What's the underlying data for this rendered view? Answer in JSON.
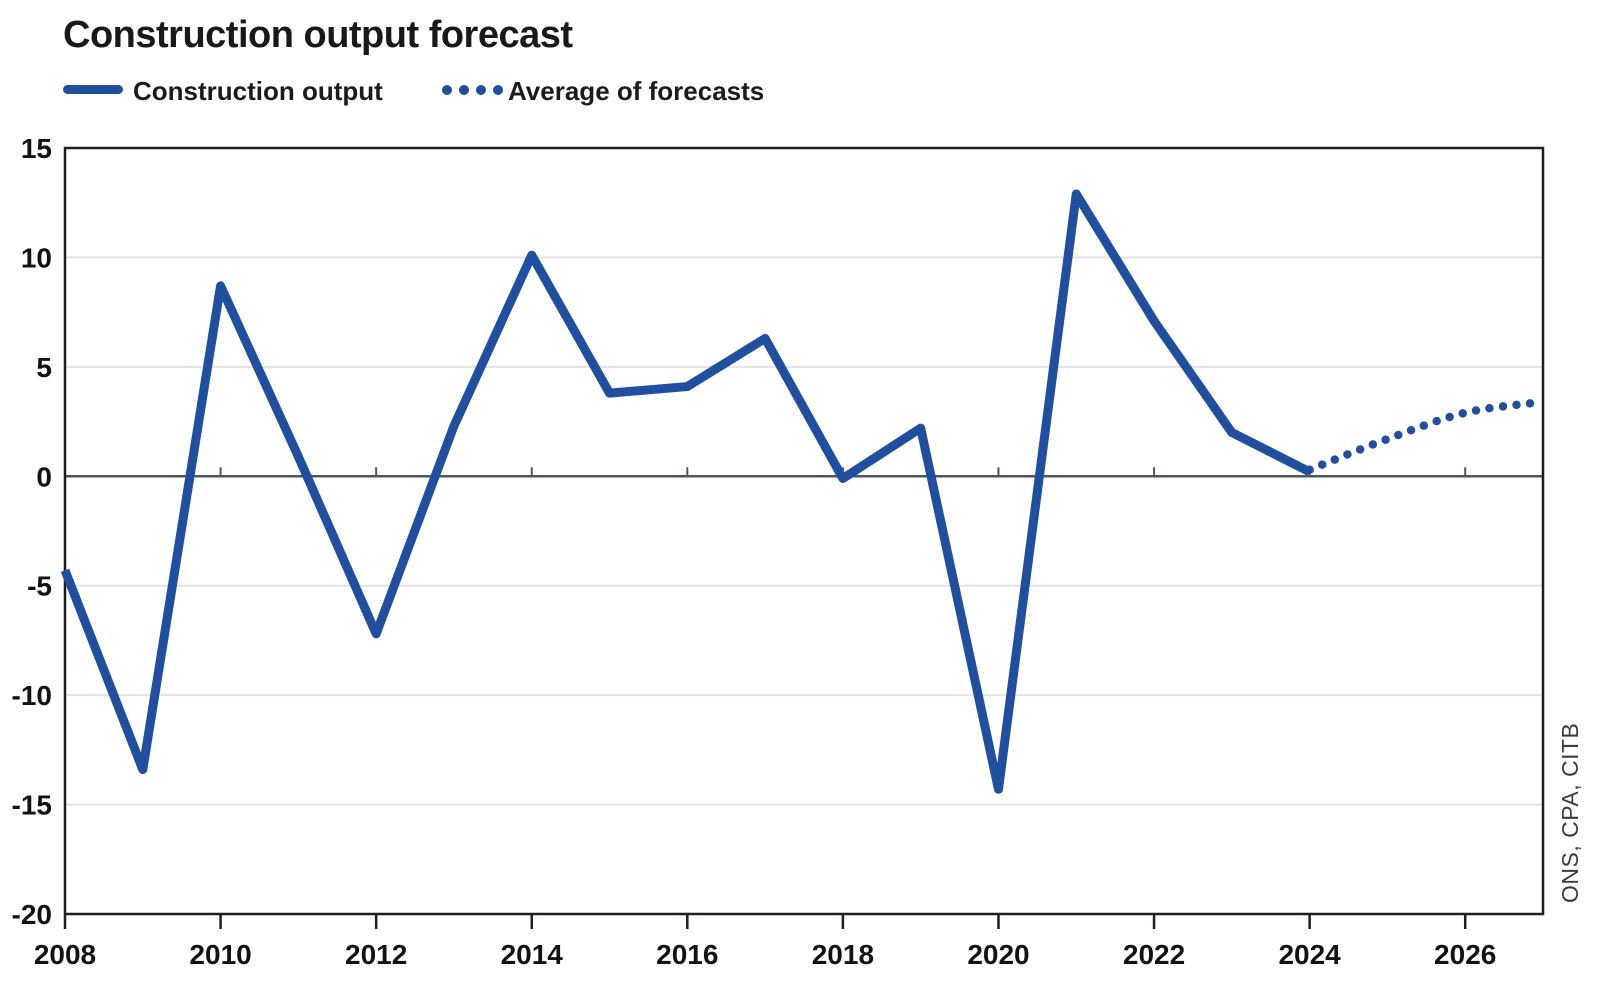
{
  "title": "Construction output forecast",
  "legend": {
    "items": [
      {
        "label": "Construction output",
        "style": "solid"
      },
      {
        "label": "Average of forecasts",
        "style": "dotted"
      }
    ]
  },
  "source": "ONS, CPA, CITB",
  "colors": {
    "line": "#1f4f9e",
    "grid": "#e3e3e4",
    "zero": "#4e555e",
    "axis": "#1c1e21",
    "text": "#121212",
    "source_text": "#3c3c3c",
    "background": "#ffffff"
  },
  "chart_data": {
    "type": "line",
    "title": "Construction output forecast",
    "xlabel": "",
    "ylabel": "",
    "xlim": [
      2008,
      2027
    ],
    "ylim": [
      -20,
      15
    ],
    "x_ticks": [
      2008,
      2010,
      2012,
      2014,
      2016,
      2018,
      2020,
      2022,
      2024,
      2026
    ],
    "y_ticks": [
      15,
      10,
      5,
      0,
      -5,
      -10,
      -15,
      -20
    ],
    "zero_line_ticks": [
      2010,
      2012,
      2014,
      2016,
      2018,
      2020,
      2022,
      2024,
      2026
    ],
    "grid": "horizontal-only",
    "legend_position": "top-left",
    "series": [
      {
        "name": "Construction output",
        "style": "solid",
        "x": [
          2008,
          2009,
          2010,
          2011,
          2012,
          2013,
          2014,
          2015,
          2016,
          2017,
          2018,
          2019,
          2020,
          2021,
          2022,
          2023,
          2024
        ],
        "values": [
          -4.3,
          -13.4,
          8.7,
          0.9,
          -7.2,
          2.3,
          10.1,
          3.8,
          4.1,
          6.3,
          -0.1,
          2.2,
          -14.3,
          12.9,
          7.1,
          2.0,
          0.2
        ]
      },
      {
        "name": "Average of forecasts",
        "style": "dotted",
        "x": [
          2024,
          2025,
          2026,
          2027
        ],
        "values": [
          0.3,
          1.7,
          2.9,
          3.4
        ]
      }
    ]
  }
}
